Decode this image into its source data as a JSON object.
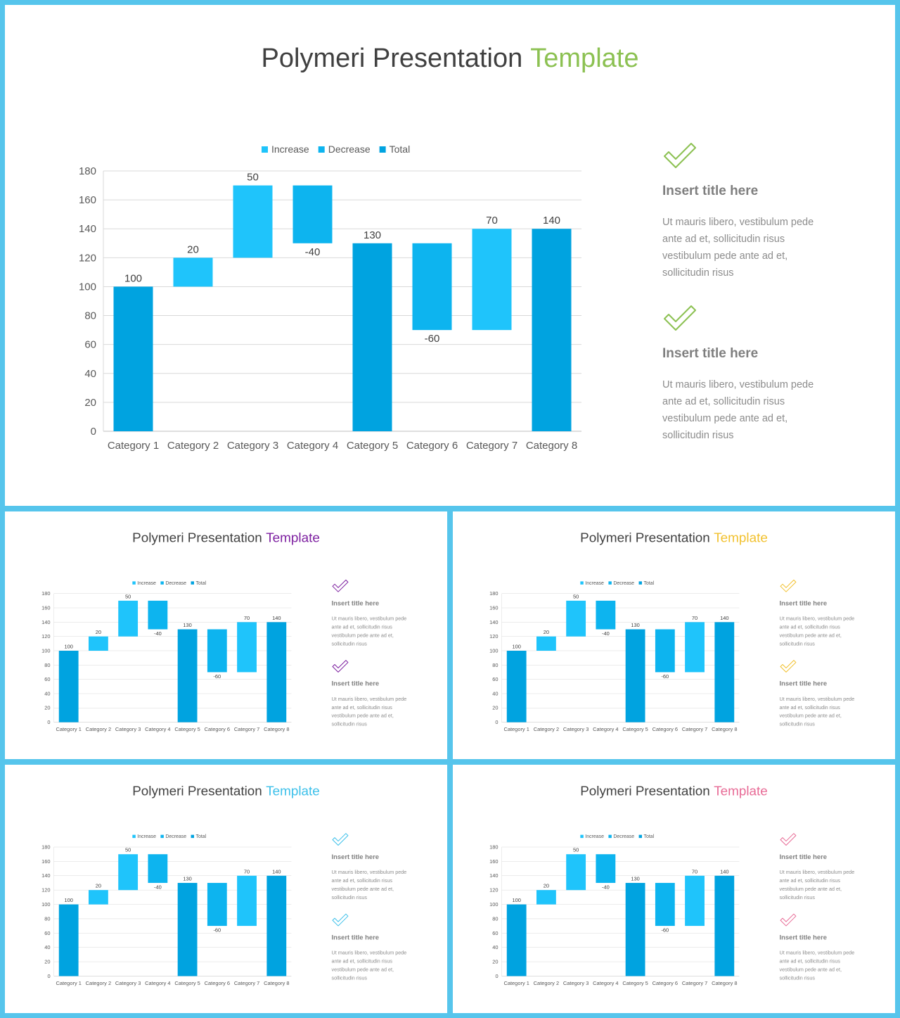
{
  "slides": [
    {
      "title": "Polymeri Presentation",
      "title_accent": "Template",
      "accent_color": "#8cc152",
      "chart_data": {
        "type": "waterfall",
        "categories": [
          "Category 1",
          "Category 2",
          "Category 3",
          "Category 4",
          "Category 5",
          "Category 6",
          "Category 7",
          "Category 8"
        ],
        "series": [
          {
            "name": "Increase",
            "color": "#1fc4fb",
            "values": [
              null,
              20,
              50,
              null,
              null,
              null,
              70,
              null
            ]
          },
          {
            "name": "Decrease",
            "color": "#0db4ef",
            "values": [
              null,
              null,
              null,
              -40,
              null,
              -60,
              null,
              null
            ]
          },
          {
            "name": "Total",
            "color": "#00a3e0",
            "values": [
              100,
              null,
              null,
              null,
              130,
              null,
              null,
              140
            ]
          }
        ],
        "ylim": [
          0,
          180
        ],
        "yticks": [
          0,
          20,
          40,
          60,
          80,
          100,
          120,
          140,
          160,
          180
        ],
        "grid": true,
        "legend": "top"
      },
      "items": [
        {
          "title": "Insert title here",
          "lines": [
            "Ut mauris libero, vestibulum pede",
            "ante ad et, sollicitudin risus",
            "vestibulum pede ante ad et,",
            "sollicitudin risus"
          ]
        },
        {
          "title": "Insert title here",
          "lines": [
            "Ut mauris libero, vestibulum pede",
            "ante ad et, sollicitudin risus",
            "vestibulum pede ante ad et,",
            "sollicitudin risus"
          ]
        }
      ]
    },
    {
      "title": "Polymeri Presentation",
      "title_accent": "Template",
      "accent_color": "#7d1fa0",
      "chart_data": {
        "type": "waterfall",
        "categories": [
          "Category 1",
          "Category 2",
          "Category 3",
          "Category 4",
          "Category 5",
          "Category 6",
          "Category 7",
          "Category 8"
        ],
        "series": [
          {
            "name": "Increase",
            "color": "#1fc4fb",
            "values": [
              null,
              20,
              50,
              null,
              null,
              null,
              70,
              null
            ]
          },
          {
            "name": "Decrease",
            "color": "#0db4ef",
            "values": [
              null,
              null,
              null,
              -40,
              null,
              -60,
              null,
              null
            ]
          },
          {
            "name": "Total",
            "color": "#00a3e0",
            "values": [
              100,
              null,
              null,
              null,
              130,
              null,
              null,
              140
            ]
          }
        ],
        "ylim": [
          0,
          180
        ],
        "yticks": [
          0,
          20,
          40,
          60,
          80,
          100,
          120,
          140,
          160,
          180
        ],
        "grid": true,
        "legend": "top"
      },
      "items": [
        {
          "title": "Insert title here",
          "lines": [
            "Ut mauris libero, vestibulum pede",
            "ante ad et, sollicitudin risus",
            "vestibulum pede ante ad et,",
            "sollicitudin risus"
          ]
        },
        {
          "title": "Insert title here",
          "lines": [
            "Ut mauris libero, vestibulum pede",
            "ante ad et, sollicitudin risus",
            "vestibulum pede ante ad et,",
            "sollicitudin risus"
          ]
        }
      ]
    },
    {
      "title": "Polymeri Presentation",
      "title_accent": "Template",
      "accent_color": "#f2c12e",
      "chart_data": {
        "type": "waterfall",
        "categories": [
          "Category 1",
          "Category 2",
          "Category 3",
          "Category 4",
          "Category 5",
          "Category 6",
          "Category 7",
          "Category 8"
        ],
        "series": [
          {
            "name": "Increase",
            "color": "#1fc4fb",
            "values": [
              null,
              20,
              50,
              null,
              null,
              null,
              70,
              null
            ]
          },
          {
            "name": "Decrease",
            "color": "#0db4ef",
            "values": [
              null,
              null,
              null,
              -40,
              null,
              -60,
              null,
              null
            ]
          },
          {
            "name": "Total",
            "color": "#00a3e0",
            "values": [
              100,
              null,
              null,
              null,
              130,
              null,
              null,
              140
            ]
          }
        ],
        "ylim": [
          0,
          180
        ],
        "yticks": [
          0,
          20,
          40,
          60,
          80,
          100,
          120,
          140,
          160,
          180
        ],
        "grid": true,
        "legend": "top"
      },
      "items": [
        {
          "title": "Insert title here",
          "lines": [
            "Ut mauris libero, vestibulum pede",
            "ante ad et, sollicitudin risus",
            "vestibulum pede ante ad et,",
            "sollicitudin risus"
          ]
        },
        {
          "title": "Insert title here",
          "lines": [
            "Ut mauris libero, vestibulum pede",
            "ante ad et, sollicitudin risus",
            "vestibulum pede ante ad et,",
            "sollicitudin risus"
          ]
        }
      ]
    },
    {
      "title": "Polymeri Presentation",
      "title_accent": "Template",
      "accent_color": "#3cc0ea",
      "chart_data": {
        "type": "waterfall",
        "categories": [
          "Category 1",
          "Category 2",
          "Category 3",
          "Category 4",
          "Category 5",
          "Category 6",
          "Category 7",
          "Category 8"
        ],
        "series": [
          {
            "name": "Increase",
            "color": "#1fc4fb",
            "values": [
              null,
              20,
              50,
              null,
              null,
              null,
              70,
              null
            ]
          },
          {
            "name": "Decrease",
            "color": "#0db4ef",
            "values": [
              null,
              null,
              null,
              -40,
              null,
              -60,
              null,
              null
            ]
          },
          {
            "name": "Total",
            "color": "#00a3e0",
            "values": [
              100,
              null,
              null,
              null,
              130,
              null,
              null,
              140
            ]
          }
        ],
        "ylim": [
          0,
          180
        ],
        "yticks": [
          0,
          20,
          40,
          60,
          80,
          100,
          120,
          140,
          160,
          180
        ],
        "grid": true,
        "legend": "top"
      },
      "items": [
        {
          "title": "Insert title here",
          "lines": [
            "Ut mauris libero, vestibulum pede",
            "ante ad et, sollicitudin risus",
            "vestibulum pede ante ad et,",
            "sollicitudin risus"
          ]
        },
        {
          "title": "Insert title here",
          "lines": [
            "Ut mauris libero, vestibulum pede",
            "ante ad et, sollicitudin risus",
            "vestibulum pede ante ad et,",
            "sollicitudin risus"
          ]
        }
      ]
    },
    {
      "title": "Polymeri Presentation",
      "title_accent": "Template",
      "accent_color": "#e86b96",
      "chart_data": {
        "type": "waterfall",
        "categories": [
          "Category 1",
          "Category 2",
          "Category 3",
          "Category 4",
          "Category 5",
          "Category 6",
          "Category 7",
          "Category 8"
        ],
        "series": [
          {
            "name": "Increase",
            "color": "#1fc4fb",
            "values": [
              null,
              20,
              50,
              null,
              null,
              null,
              70,
              null
            ]
          },
          {
            "name": "Decrease",
            "color": "#0db4ef",
            "values": [
              null,
              null,
              null,
              -40,
              null,
              -60,
              null,
              null
            ]
          },
          {
            "name": "Total",
            "color": "#00a3e0",
            "values": [
              100,
              null,
              null,
              null,
              130,
              null,
              null,
              140
            ]
          }
        ],
        "ylim": [
          0,
          180
        ],
        "yticks": [
          0,
          20,
          40,
          60,
          80,
          100,
          120,
          140,
          160,
          180
        ],
        "grid": true,
        "legend": "top"
      },
      "items": [
        {
          "title": "Insert title here",
          "lines": [
            "Ut mauris libero, vestibulum pede",
            "ante ad et, sollicitudin risus",
            "vestibulum pede ante ad et,",
            "sollicitudin risus"
          ]
        },
        {
          "title": "Insert title here",
          "lines": [
            "Ut mauris libero, vestibulum pede",
            "ante ad et, sollicitudin risus",
            "vestibulum pede ante ad et,",
            "sollicitudin risus"
          ]
        }
      ]
    }
  ]
}
